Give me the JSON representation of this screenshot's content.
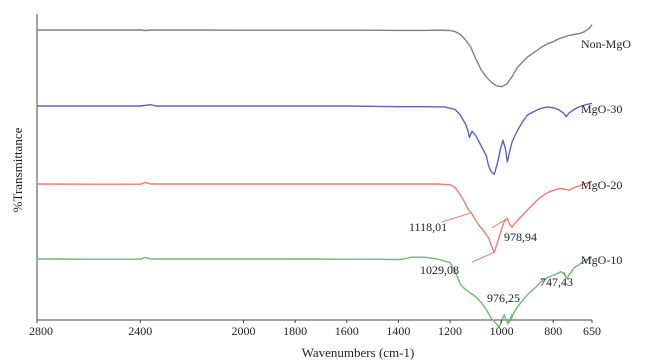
{
  "chart_data": {
    "type": "line",
    "title": "",
    "xlabel": "Wavenumbers (cm-1)",
    "ylabel": "%Transmittance",
    "xlim": [
      2800,
      650
    ],
    "x_reversed": true,
    "x_ticks": [
      2800,
      2400,
      2000,
      1800,
      1600,
      1400,
      1200,
      1000,
      800,
      650
    ],
    "grid": false,
    "y_units": "relative transmittance, vertically offset stacked traces",
    "series": [
      {
        "name": "Non-MgO",
        "color": "#808080",
        "offset": 0,
        "points": [
          [
            2800,
            0
          ],
          [
            2600,
            0
          ],
          [
            2400,
            0
          ],
          [
            2380,
            0.6
          ],
          [
            2360,
            0
          ],
          [
            2200,
            0
          ],
          [
            2000,
            0.2
          ],
          [
            1800,
            0.2
          ],
          [
            1600,
            0.2
          ],
          [
            1400,
            0.4
          ],
          [
            1300,
            0.4
          ],
          [
            1250,
            0.2
          ],
          [
            1200,
            0.6
          ],
          [
            1180,
            1.8
          ],
          [
            1160,
            5
          ],
          [
            1140,
            11
          ],
          [
            1120,
            19
          ],
          [
            1100,
            32
          ],
          [
            1080,
            44
          ],
          [
            1060,
            52
          ],
          [
            1040,
            58
          ],
          [
            1020,
            62
          ],
          [
            1000,
            63
          ],
          [
            980,
            60
          ],
          [
            960,
            52
          ],
          [
            940,
            42
          ],
          [
            920,
            36
          ],
          [
            900,
            30
          ],
          [
            880,
            26
          ],
          [
            860,
            22
          ],
          [
            840,
            18
          ],
          [
            820,
            15
          ],
          [
            800,
            13
          ],
          [
            780,
            10
          ],
          [
            760,
            8
          ],
          [
            740,
            6
          ],
          [
            720,
            5
          ],
          [
            700,
            4
          ],
          [
            680,
            2
          ],
          [
            660,
            -2
          ],
          [
            650,
            -6
          ]
        ]
      },
      {
        "name": "MgO-30",
        "color": "#5b63c8",
        "offset": 76,
        "points": [
          [
            2800,
            0
          ],
          [
            2600,
            0
          ],
          [
            2400,
            0
          ],
          [
            2360,
            -1.4
          ],
          [
            2340,
            0
          ],
          [
            2000,
            0
          ],
          [
            1600,
            0
          ],
          [
            1400,
            0.8
          ],
          [
            1300,
            0.8
          ],
          [
            1220,
            1
          ],
          [
            1180,
            4
          ],
          [
            1160,
            10
          ],
          [
            1140,
            20
          ],
          [
            1130,
            28
          ],
          [
            1125,
            35
          ],
          [
            1115,
            28
          ],
          [
            1100,
            33
          ],
          [
            1080,
            44
          ],
          [
            1060,
            55
          ],
          [
            1050,
            67
          ],
          [
            1040,
            73
          ],
          [
            1029,
            76
          ],
          [
            1015,
            62
          ],
          [
            1005,
            48
          ],
          [
            995,
            38
          ],
          [
            985,
            48
          ],
          [
            978,
            62
          ],
          [
            970,
            52
          ],
          [
            960,
            40
          ],
          [
            940,
            28
          ],
          [
            920,
            18
          ],
          [
            900,
            10
          ],
          [
            880,
            7
          ],
          [
            860,
            4
          ],
          [
            840,
            2
          ],
          [
            820,
            1
          ],
          [
            800,
            2
          ],
          [
            780,
            4
          ],
          [
            760,
            8
          ],
          [
            750,
            12
          ],
          [
            740,
            8
          ],
          [
            720,
            4
          ],
          [
            700,
            1
          ],
          [
            680,
            -1
          ],
          [
            650,
            -3
          ]
        ]
      },
      {
        "name": "MgO-20",
        "color": "#ef7b74",
        "offset": 154,
        "points": [
          [
            2800,
            0
          ],
          [
            2600,
            0.2
          ],
          [
            2400,
            0.2
          ],
          [
            2380,
            -1.8
          ],
          [
            2360,
            0
          ],
          [
            2000,
            0
          ],
          [
            1800,
            0
          ],
          [
            1600,
            0
          ],
          [
            1400,
            0
          ],
          [
            1300,
            0
          ],
          [
            1250,
            0
          ],
          [
            1200,
            0.8
          ],
          [
            1180,
            4
          ],
          [
            1160,
            12
          ],
          [
            1140,
            22
          ],
          [
            1130,
            28
          ],
          [
            1118,
            32
          ],
          [
            1105,
            38
          ],
          [
            1090,
            45
          ],
          [
            1070,
            52
          ],
          [
            1050,
            60
          ],
          [
            1040,
            68
          ],
          [
            1029,
            76
          ],
          [
            1015,
            64
          ],
          [
            1000,
            50
          ],
          [
            990,
            42
          ],
          [
            978,
            38
          ],
          [
            970,
            44
          ],
          [
            960,
            48
          ],
          [
            950,
            44
          ],
          [
            930,
            38
          ],
          [
            910,
            32
          ],
          [
            890,
            26
          ],
          [
            870,
            20
          ],
          [
            850,
            15
          ],
          [
            830,
            11
          ],
          [
            810,
            8
          ],
          [
            790,
            6
          ],
          [
            770,
            5
          ],
          [
            750,
            6
          ],
          [
            740,
            7
          ],
          [
            720,
            4
          ],
          [
            700,
            2
          ],
          [
            680,
            0
          ],
          [
            650,
            -3
          ]
        ]
      },
      {
        "name": "MgO-10",
        "color": "#6dbb72",
        "offset": 229,
        "points": [
          [
            2800,
            0
          ],
          [
            2600,
            0.2
          ],
          [
            2400,
            0.2
          ],
          [
            2380,
            -1.8
          ],
          [
            2360,
            0
          ],
          [
            2000,
            0
          ],
          [
            1800,
            0
          ],
          [
            1600,
            0.2
          ],
          [
            1500,
            0.2
          ],
          [
            1440,
            0.4
          ],
          [
            1400,
            0.6
          ],
          [
            1380,
            0
          ],
          [
            1350,
            -2
          ],
          [
            1300,
            -2
          ],
          [
            1250,
            0
          ],
          [
            1200,
            4
          ],
          [
            1180,
            14
          ],
          [
            1160,
            28
          ],
          [
            1140,
            34
          ],
          [
            1120,
            38
          ],
          [
            1100,
            42
          ],
          [
            1080,
            48
          ],
          [
            1060,
            56
          ],
          [
            1040,
            66
          ],
          [
            1020,
            72
          ],
          [
            1010,
            76
          ],
          [
            1000,
            68
          ],
          [
            990,
            62
          ],
          [
            976,
            72
          ],
          [
            965,
            68
          ],
          [
            950,
            58
          ],
          [
            930,
            50
          ],
          [
            910,
            43
          ],
          [
            890,
            37
          ],
          [
            870,
            32
          ],
          [
            850,
            26
          ],
          [
            830,
            22
          ],
          [
            810,
            19
          ],
          [
            790,
            17
          ],
          [
            770,
            14
          ],
          [
            760,
            16
          ],
          [
            747,
            22
          ],
          [
            740,
            18
          ],
          [
            720,
            10
          ],
          [
            700,
            6
          ],
          [
            680,
            2
          ],
          [
            650,
            -2
          ]
        ]
      }
    ],
    "annotations": [
      {
        "text": "1118,01",
        "x": 1118,
        "series": "MgO-20"
      },
      {
        "text": "978,94",
        "x": 978.94,
        "series": "MgO-20"
      },
      {
        "text": "1029,08",
        "x": 1029.08,
        "series": "MgO-20"
      },
      {
        "text": "747,43",
        "x": 747.43,
        "series": "MgO-10"
      },
      {
        "text": "976,25",
        "x": 976.25,
        "series": "MgO-10"
      }
    ]
  }
}
